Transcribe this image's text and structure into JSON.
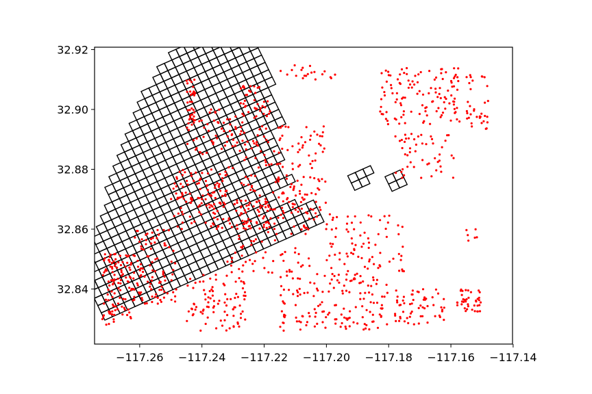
{
  "chart_data": {
    "type": "scatter",
    "title": "",
    "xlabel": "",
    "ylabel": "",
    "xlim": [
      -117.2745,
      -117.1402
    ],
    "ylim": [
      32.8216,
      32.9208
    ],
    "x_ticks": [
      -117.26,
      -117.24,
      -117.22,
      -117.2,
      -117.18,
      -117.16,
      -117.14
    ],
    "x_tick_labels": [
      "−117.26",
      "−117.24",
      "−117.22",
      "−117.20",
      "−117.18",
      "−117.16",
      "−117.14"
    ],
    "y_ticks": [
      32.84,
      32.86,
      32.88,
      32.9,
      32.92
    ],
    "y_tick_labels": [
      "32.84",
      "32.86",
      "32.88",
      "32.90",
      "32.92"
    ],
    "grid": false,
    "legend": "none",
    "colors": {
      "grid_cells": "#000000",
      "points": "#ff0000"
    },
    "grid_overlay": {
      "description_units": "degrees",
      "rotation_deg": 25,
      "origin": [
        -117.2712,
        32.8296
      ],
      "cell_size": 0.00268,
      "row_spans": [
        [
          0,
          28
        ],
        [
          0,
          28
        ],
        [
          0,
          28
        ],
        [
          0,
          26
        ],
        [
          0,
          24
        ],
        [
          1,
          24
        ],
        [
          2,
          27
        ],
        [
          2,
          26
        ],
        [
          3,
          26
        ],
        [
          3,
          27
        ],
        [
          4,
          27
        ],
        [
          5,
          27
        ],
        [
          6,
          27
        ],
        [
          7,
          29
        ],
        [
          7,
          29
        ],
        [
          8,
          29
        ],
        [
          9,
          29
        ],
        [
          10,
          29
        ],
        [
          11,
          30
        ],
        [
          12,
          30
        ],
        [
          13,
          30
        ],
        [
          14,
          30
        ],
        [
          15,
          30
        ],
        [
          16,
          30
        ],
        [
          18,
          30
        ],
        [
          19,
          30
        ],
        [
          21,
          30
        ],
        [
          23,
          30
        ],
        [
          25,
          30
        ],
        [
          28,
          30
        ]
      ],
      "extra_cells": [
        [
          34,
          2
        ],
        [
          35,
          2
        ],
        [
          34,
          3
        ],
        [
          35,
          3
        ],
        [
          36,
          3
        ],
        [
          38,
          0
        ],
        [
          39,
          0
        ],
        [
          38,
          1
        ],
        [
          39,
          1
        ]
      ]
    },
    "point_clusters": [
      {
        "name": "",
        "lon": [
          -117.272,
          -117.262
        ],
        "lat": [
          32.828,
          32.852
        ],
        "n": 110
      },
      {
        "name": "",
        "lon": [
          -117.262,
          -117.248
        ],
        "lat": [
          32.835,
          32.86
        ],
        "n": 100
      },
      {
        "name": "",
        "lon": [
          -117.25,
          -117.232
        ],
        "lat": [
          32.86,
          32.88
        ],
        "n": 120
      },
      {
        "name": "",
        "lon": [
          -117.245,
          -117.226
        ],
        "lat": [
          32.826,
          32.845
        ],
        "n": 90
      },
      {
        "name": "",
        "lon": [
          -117.232,
          -117.205
        ],
        "lat": [
          32.845,
          32.87
        ],
        "n": 110
      },
      {
        "name": "",
        "lon": [
          -117.228,
          -117.2
        ],
        "lat": [
          32.86,
          32.878
        ],
        "n": 110
      },
      {
        "name": "",
        "lon": [
          -117.232,
          -117.2
        ],
        "lat": [
          32.88,
          32.895
        ],
        "n": 80
      },
      {
        "name": "",
        "lon": [
          -117.245,
          -117.225
        ],
        "lat": [
          32.885,
          32.9
        ],
        "n": 60
      },
      {
        "name": "",
        "lon": [
          -117.215,
          -117.18
        ],
        "lat": [
          32.826,
          32.845
        ],
        "n": 150
      },
      {
        "name": "",
        "lon": [
          -117.2,
          -117.175
        ],
        "lat": [
          32.845,
          32.865
        ],
        "n": 80
      },
      {
        "name": "",
        "lon": [
          -117.178,
          -117.162
        ],
        "lat": [
          32.828,
          32.84
        ],
        "n": 60
      },
      {
        "name": "",
        "lon": [
          -117.158,
          -117.15
        ],
        "lat": [
          32.832,
          32.84
        ],
        "n": 40
      },
      {
        "name": "",
        "lon": [
          -117.183,
          -117.157
        ],
        "lat": [
          32.895,
          32.914
        ],
        "n": 120
      },
      {
        "name": "",
        "lon": [
          -117.155,
          -117.148
        ],
        "lat": [
          32.893,
          32.912
        ],
        "n": 35
      },
      {
        "name": "",
        "lon": [
          -117.178,
          -117.158
        ],
        "lat": [
          32.877,
          32.892
        ],
        "n": 50
      },
      {
        "name": "",
        "lon": [
          -117.245,
          -117.242
        ],
        "lat": [
          32.896,
          32.91
        ],
        "n": 30
      },
      {
        "name": "",
        "lon": [
          -117.228,
          -117.218
        ],
        "lat": [
          32.897,
          32.908
        ],
        "n": 40
      },
      {
        "name": "",
        "lon": [
          -117.215,
          -117.195
        ],
        "lat": [
          32.91,
          32.915
        ],
        "n": 20
      },
      {
        "name": "",
        "lon": [
          -117.157,
          -117.151
        ],
        "lat": [
          32.855,
          32.86
        ],
        "n": 6
      }
    ]
  }
}
